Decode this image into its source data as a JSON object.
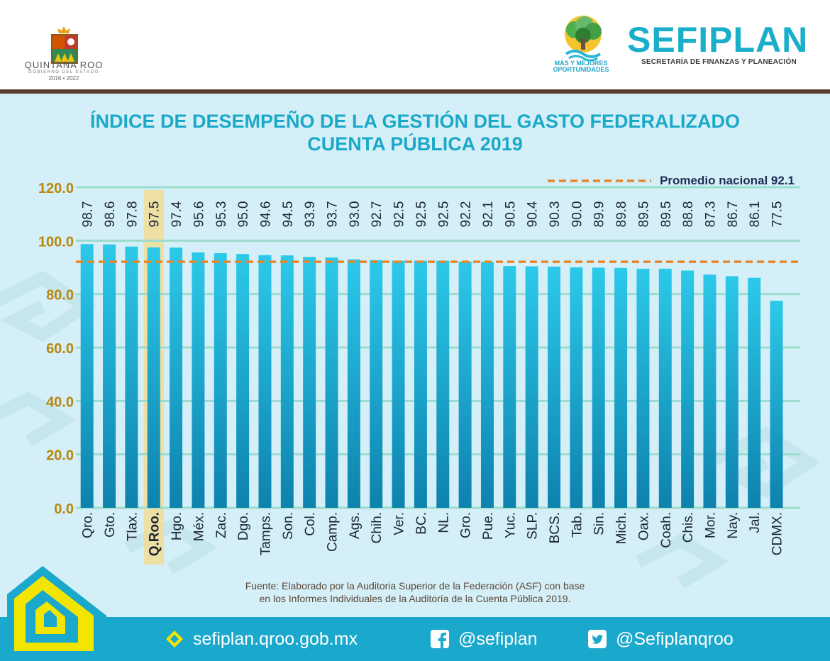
{
  "header": {
    "state_name": "QUINTANA ROO",
    "state_sub": "GOBIERNO DEL ESTADO",
    "state_years": "2016 • 2022",
    "tree_line1": "MÁS Y MEJORES",
    "tree_line2": "OPORTUNIDADES",
    "brand": "SEFIPLAN",
    "brand_sub": "SECRETARÍA DE FINANZAS Y PLANEACIÓN"
  },
  "chart_data": {
    "type": "bar",
    "title": "ÍNDICE DE DESEMPEÑO DE LA GESTIÓN DEL GASTO FEDERALIZADO",
    "subtitle": "CUENTA PÚBLICA 2019",
    "categories": [
      "Qro.",
      "Gto.",
      "Tlax.",
      "Q.Roo.",
      "Hgo.",
      "Méx.",
      "Zac.",
      "Dgo.",
      "Tamps.",
      "Son.",
      "Col.",
      "Camp.",
      "Ags.",
      "Chih.",
      "Ver.",
      "BC.",
      "NL.",
      "Gro.",
      "Pue.",
      "Yuc.",
      "SLP.",
      "BCS.",
      "Tab.",
      "Sin.",
      "Mich.",
      "Oax.",
      "Coah.",
      "Chis.",
      "Mor.",
      "Nay.",
      "Jal.",
      "CDMX."
    ],
    "values": [
      98.7,
      98.6,
      97.8,
      97.5,
      97.4,
      95.6,
      95.3,
      95.0,
      94.6,
      94.5,
      93.9,
      93.7,
      93.0,
      92.7,
      92.5,
      92.5,
      92.5,
      92.2,
      92.1,
      90.5,
      90.4,
      90.3,
      90.0,
      89.9,
      89.8,
      89.5,
      89.5,
      88.8,
      87.3,
      86.7,
      86.1,
      77.5
    ],
    "value_labels": [
      "98.7",
      "98.6",
      "97.8",
      "97.5",
      "97.4",
      "95.6",
      "95.3",
      "95.0",
      "94.6",
      "94.5",
      "93.9",
      "93.7",
      "93.0",
      "92.7",
      "92.5",
      "92.5",
      "92.5",
      "92.2",
      "92.1",
      "90.5",
      "90.4",
      "90.3",
      "90.0",
      "89.9",
      "89.8",
      "89.5",
      "89.5",
      "88.8",
      "87.3",
      "86.7",
      "86.1",
      "77.5"
    ],
    "ylim": [
      0,
      120
    ],
    "yticks": [
      "0.0",
      "20.0",
      "40.0",
      "60.0",
      "80.0",
      "100.0",
      "120.0"
    ],
    "ytick_values": [
      0,
      20,
      40,
      60,
      80,
      100,
      120
    ],
    "grid": true,
    "highlight_category": "Q.Roo.",
    "reference_line": {
      "label": "Promedio nacional 92.1",
      "value": 92.1
    },
    "colors": {
      "bar_top": "#2cc9ea",
      "bar_bottom": "#0d82ad",
      "grid": "#9bdccd",
      "reference": "#e8862a",
      "highlight": "#f7d98a",
      "axis_text": "#b8860b",
      "label_text": "#1b2633"
    }
  },
  "source": {
    "line1": "Fuente: Elaborado por la Auditoria Superior de la Federación (ASF) con base",
    "line2": "en los Informes Individuales de la Auditoría de la Cuenta Pública 2019."
  },
  "footer": {
    "website": "sefiplan.qroo.gob.mx",
    "facebook": "@sefiplan",
    "twitter": "@Sefiplanqroo",
    "icons": [
      "diamond-logo-icon",
      "facebook-icon",
      "twitter-icon"
    ]
  }
}
